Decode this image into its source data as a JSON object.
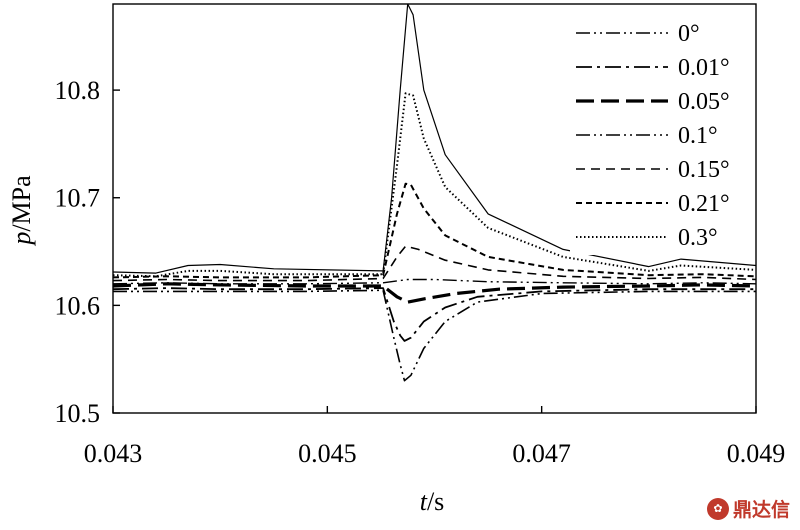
{
  "chart_data": {
    "type": "line",
    "xlabel_italic": "t",
    "xlabel_unit": "/s",
    "ylabel_italic": "p",
    "ylabel_unit": "/MPa",
    "xlim": [
      0.043,
      0.049
    ],
    "ylim": [
      10.5,
      10.88
    ],
    "x_ticks": [
      0.043,
      0.045,
      0.047,
      0.049
    ],
    "x_tick_labels": [
      "0.043",
      "0.045",
      "0.047",
      "0.049"
    ],
    "y_ticks": [
      10.5,
      10.6,
      10.7,
      10.8
    ],
    "y_tick_labels": [
      "10.5",
      "10.6",
      "10.7",
      "10.8"
    ],
    "grid": false,
    "legend_position": "top-right",
    "series": [
      {
        "name": "0°",
        "style": "dash-dot-dot",
        "width": 1.6,
        "x": [
          0.043,
          0.0434,
          0.044,
          0.0448,
          0.04552,
          0.04562,
          0.04568,
          0.04572,
          0.04578,
          0.0459,
          0.0461,
          0.0464,
          0.047,
          0.048,
          0.049
        ],
        "y": [
          10.613,
          10.613,
          10.613,
          10.613,
          10.614,
          10.57,
          10.545,
          10.53,
          10.535,
          10.56,
          10.585,
          10.603,
          10.611,
          10.613,
          10.613
        ]
      },
      {
        "name": "0.01°",
        "style": "dash-dot",
        "width": 1.8,
        "x": [
          0.043,
          0.0435,
          0.044,
          0.0448,
          0.04552,
          0.04562,
          0.04568,
          0.04572,
          0.04578,
          0.0459,
          0.0461,
          0.0464,
          0.047,
          0.048,
          0.049
        ],
        "y": [
          10.615,
          10.616,
          10.615,
          10.615,
          10.616,
          10.585,
          10.572,
          10.567,
          10.57,
          10.585,
          10.598,
          10.608,
          10.613,
          10.615,
          10.615
        ]
      },
      {
        "name": "0.05°",
        "style": "long-dash",
        "width": 3.2,
        "x": [
          0.043,
          0.0435,
          0.044,
          0.0448,
          0.04552,
          0.04565,
          0.04575,
          0.0459,
          0.0462,
          0.0466,
          0.0472,
          0.048,
          0.0485,
          0.049
        ],
        "y": [
          10.618,
          10.62,
          10.619,
          10.618,
          10.618,
          10.608,
          10.603,
          10.606,
          10.611,
          10.615,
          10.617,
          10.618,
          10.619,
          10.618
        ]
      },
      {
        "name": "0.1°",
        "style": "dash-dot-dot",
        "width": 1.4,
        "x": [
          0.043,
          0.0435,
          0.044,
          0.0448,
          0.04552,
          0.04575,
          0.046,
          0.0465,
          0.0472,
          0.048,
          0.0485,
          0.049
        ],
        "y": [
          10.62,
          10.621,
          10.62,
          10.62,
          10.621,
          10.624,
          10.624,
          10.622,
          10.621,
          10.62,
          10.621,
          10.62
        ],
        "hide_legend_line": false
      },
      {
        "name": "0.15°",
        "style": "dash",
        "width": 1.6,
        "x": [
          0.043,
          0.0435,
          0.044,
          0.0448,
          0.04552,
          0.04565,
          0.04573,
          0.04585,
          0.0461,
          0.0465,
          0.0472,
          0.048,
          0.0485,
          0.049
        ],
        "y": [
          10.623,
          10.624,
          10.623,
          10.623,
          10.625,
          10.645,
          10.655,
          10.652,
          10.642,
          10.633,
          10.627,
          10.625,
          10.626,
          10.624
        ]
      },
      {
        "name": "0.21°",
        "style": "short-dash",
        "width": 2.0,
        "x": [
          0.043,
          0.0435,
          0.044,
          0.0448,
          0.04552,
          0.04565,
          0.04573,
          0.04578,
          0.0459,
          0.0461,
          0.0465,
          0.0472,
          0.048,
          0.0485,
          0.049
        ],
        "y": [
          10.626,
          10.627,
          10.626,
          10.626,
          10.628,
          10.685,
          10.713,
          10.712,
          10.69,
          10.665,
          10.645,
          10.633,
          10.628,
          10.629,
          10.627
        ]
      },
      {
        "name": "0.3°",
        "style": "dotted",
        "width": 2.0,
        "x": [
          0.043,
          0.0434,
          0.0437,
          0.044,
          0.0445,
          0.04552,
          0.04565,
          0.04573,
          0.0458,
          0.0459,
          0.0461,
          0.0465,
          0.0472,
          0.048,
          0.0483,
          0.049
        ],
        "y": [
          10.628,
          10.627,
          10.632,
          10.632,
          10.629,
          10.629,
          10.73,
          10.797,
          10.795,
          10.755,
          10.71,
          10.672,
          10.645,
          10.632,
          10.637,
          10.633
        ]
      },
      {
        "name": "",
        "style": "solid",
        "width": 1.2,
        "legend": false,
        "x": [
          0.043,
          0.0434,
          0.0437,
          0.044,
          0.0445,
          0.04552,
          0.0456,
          0.04568,
          0.04575,
          0.0458,
          0.0459,
          0.0461,
          0.0465,
          0.0472,
          0.048,
          0.0483,
          0.049
        ],
        "y": [
          10.631,
          10.63,
          10.637,
          10.638,
          10.634,
          10.632,
          10.7,
          10.8,
          10.88,
          10.87,
          10.8,
          10.74,
          10.685,
          10.652,
          10.636,
          10.643,
          10.637
        ]
      }
    ]
  },
  "watermark": {
    "text": "鼎达信"
  }
}
